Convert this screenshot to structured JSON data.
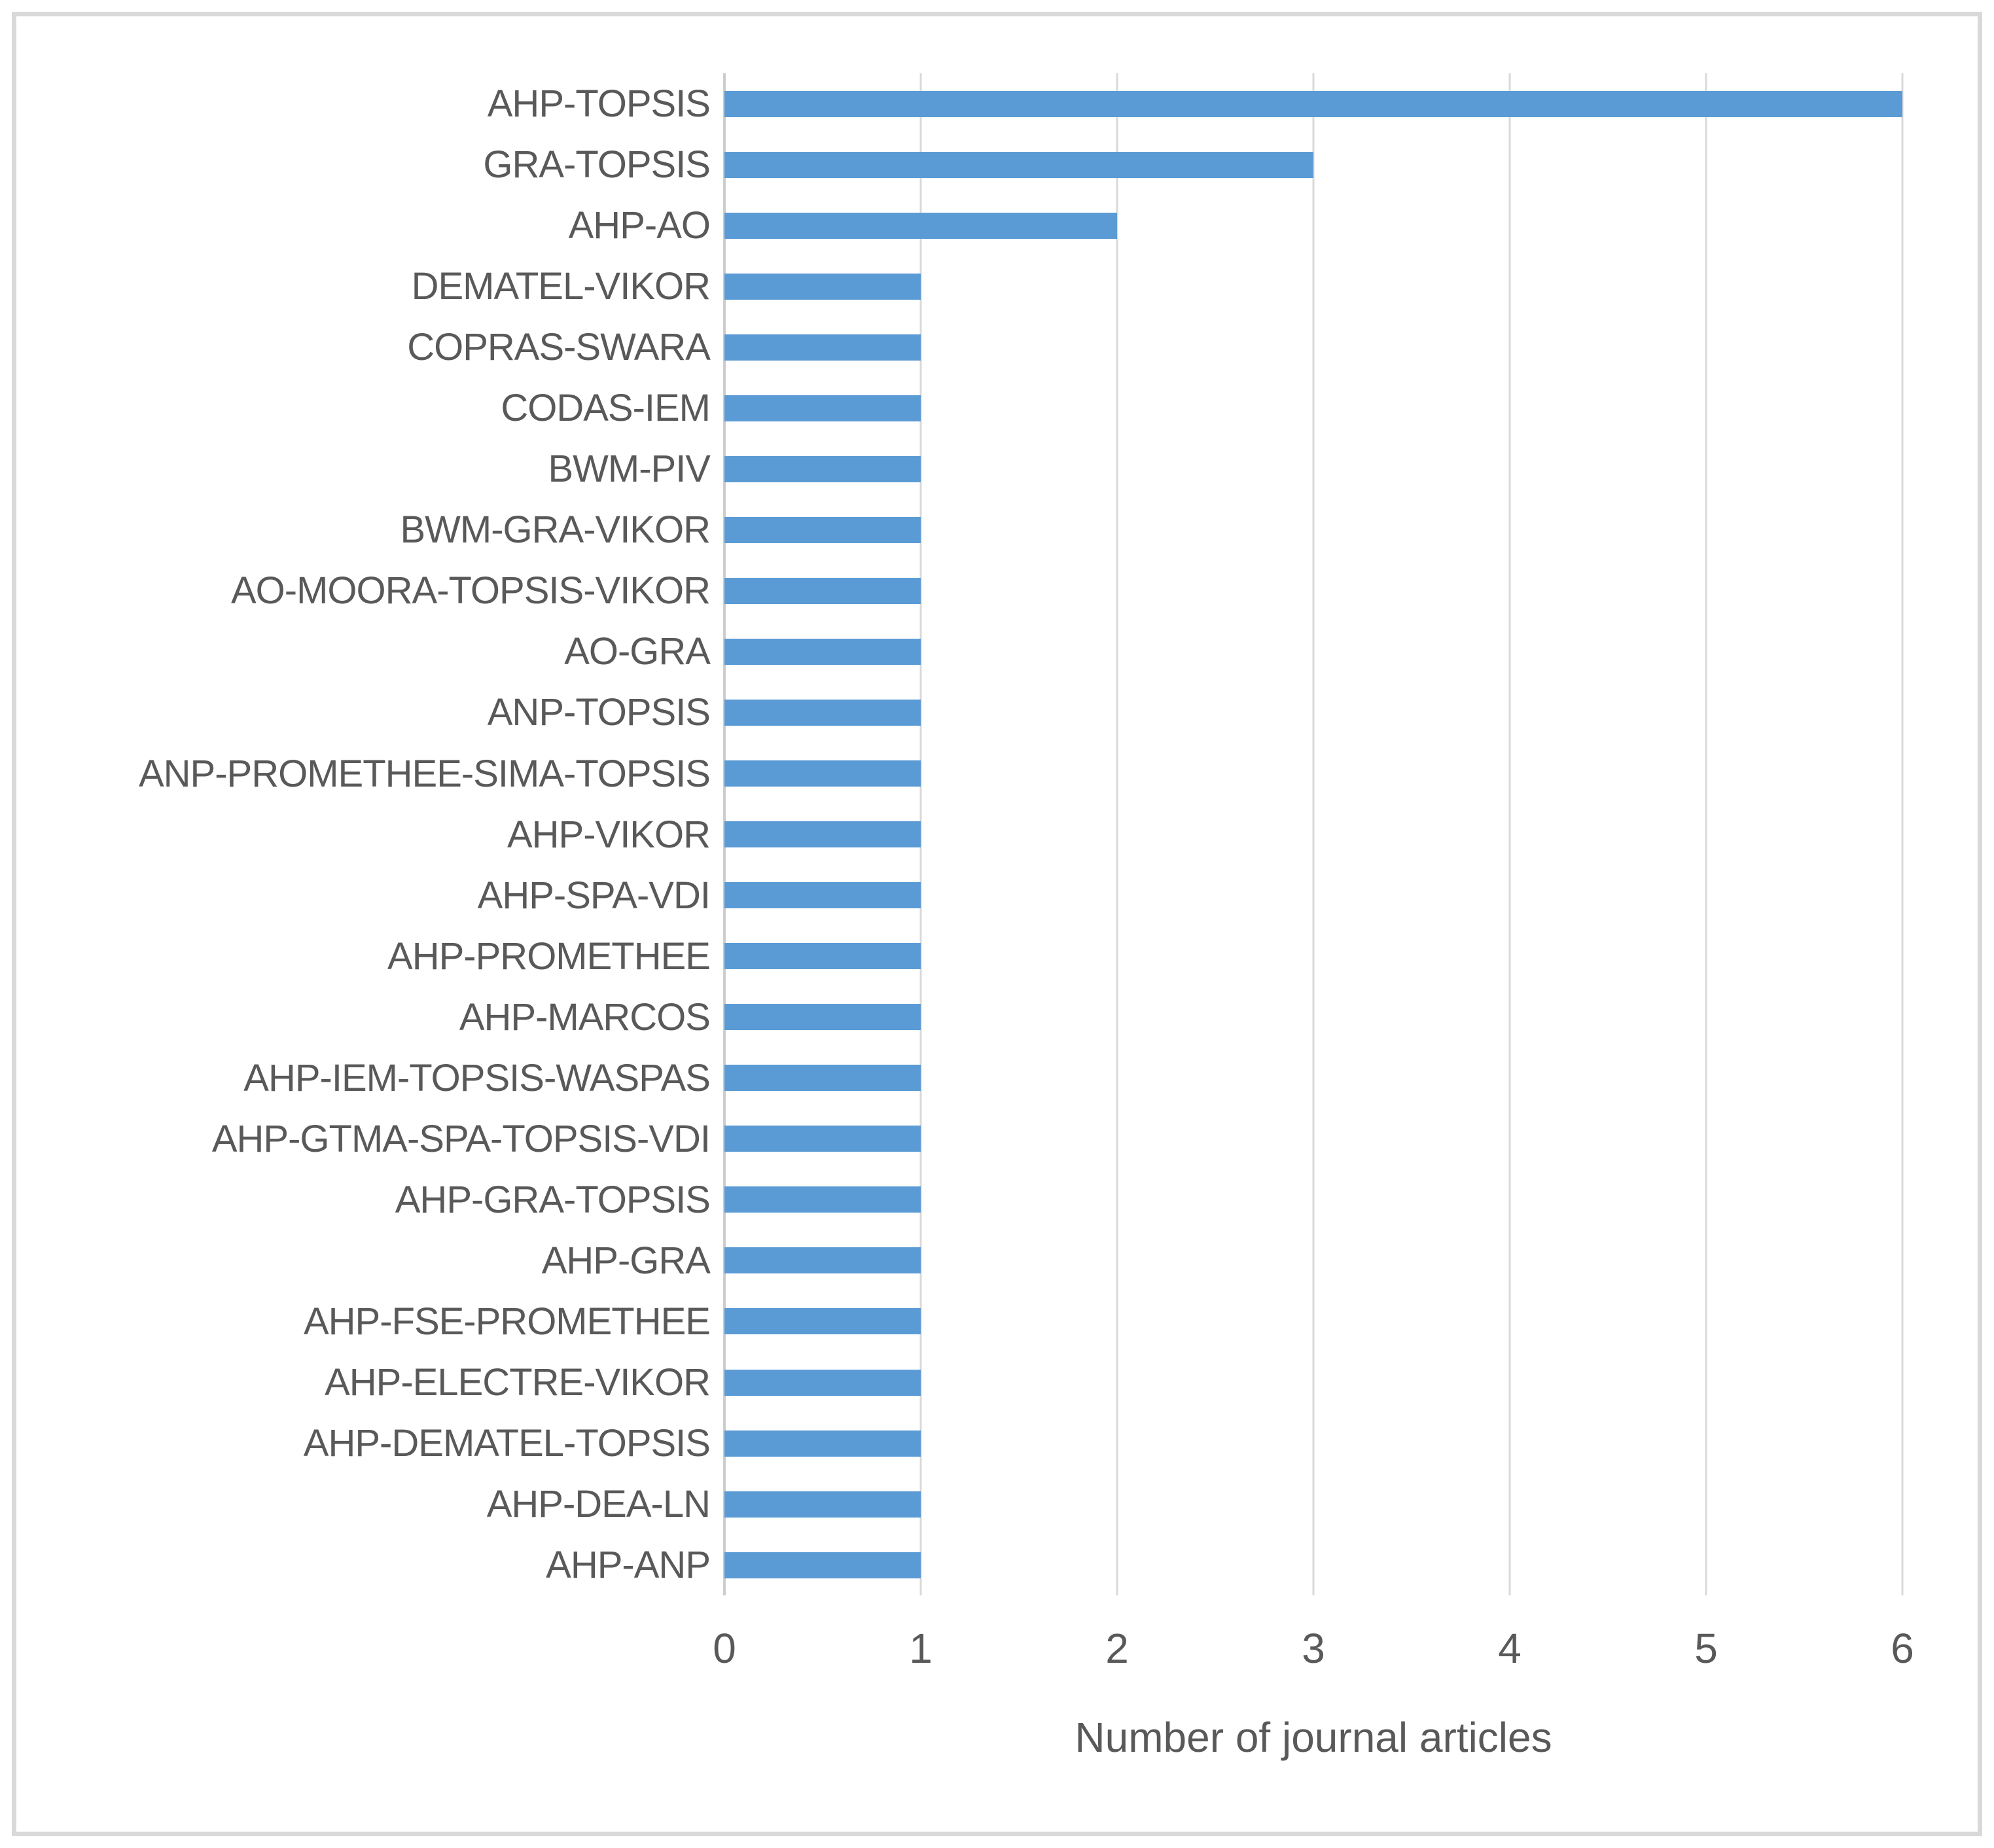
{
  "chart_data": {
    "type": "bar",
    "orientation": "horizontal",
    "title": "",
    "xlabel": "Number of journal articles",
    "ylabel": "",
    "categories": [
      "AHP-TOPSIS",
      "GRA-TOPSIS",
      "AHP-AO",
      "DEMATEL-VIKOR",
      "COPRAS-SWARA",
      "CODAS-IEM",
      "BWM-PIV",
      "BWM-GRA-VIKOR",
      "AO-MOORA-TOPSIS-VIKOR",
      "AO-GRA",
      "ANP-TOPSIS",
      "ANP-PROMETHEE-SIMA-TOPSIS",
      "AHP-VIKOR",
      "AHP-SPA-VDI",
      "AHP-PROMETHEE",
      "AHP-MARCOS",
      "AHP-IEM-TOPSIS-WASPAS",
      "AHP-GTMA-SPA-TOPSIS-VDI",
      "AHP-GRA-TOPSIS",
      "AHP-GRA",
      "AHP-FSE-PROMETHEE",
      "AHP-ELECTRE-VIKOR",
      "AHP-DEMATEL-TOPSIS",
      "AHP-DEA-LN",
      "AHP-ANP"
    ],
    "values": [
      6,
      3,
      2,
      1,
      1,
      1,
      1,
      1,
      1,
      1,
      1,
      1,
      1,
      1,
      1,
      1,
      1,
      1,
      1,
      1,
      1,
      1,
      1,
      1,
      1
    ],
    "xlim": [
      0,
      6
    ],
    "xticks": [
      0,
      1,
      2,
      3,
      4,
      5,
      6
    ],
    "grid": true,
    "legend": "none",
    "colors": {
      "bar": "#5B9BD5",
      "text": "#595959",
      "gridline": "#D9D9D9",
      "axis_line": "#CDCDCD",
      "frame": "#D9D9D9",
      "background": "#FFFFFF"
    }
  }
}
